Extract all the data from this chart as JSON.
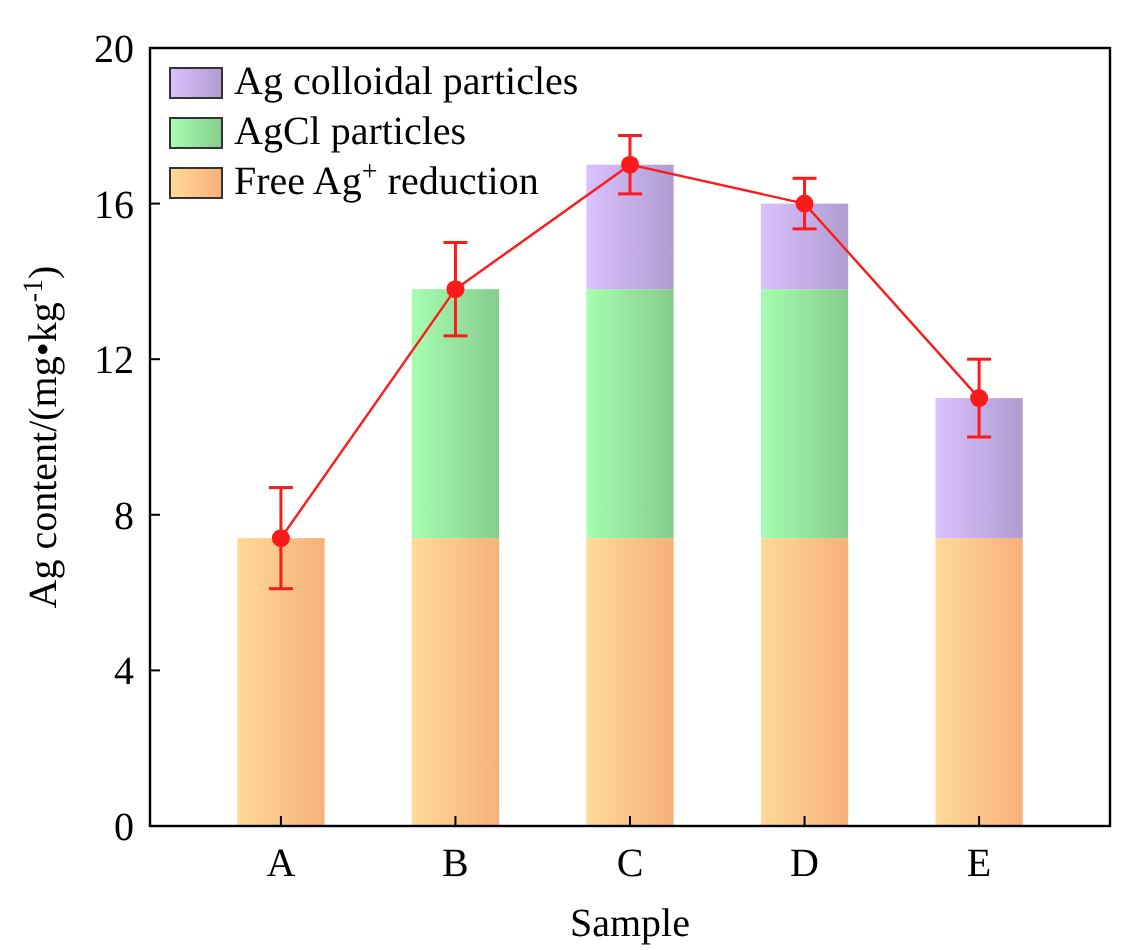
{
  "chart_data": {
    "type": "bar",
    "stacked": true,
    "xlabel": "Sample",
    "ylabel": "Ag content/(mg•kg$^{-1}$)",
    "categories": [
      "A",
      "B",
      "C",
      "D",
      "E"
    ],
    "series": [
      {
        "name": "Free Ag$^{+}$ reduction",
        "color": "#f7b07a",
        "values": [
          7.4,
          7.4,
          7.4,
          7.4,
          7.4
        ]
      },
      {
        "name": "AgCl particles",
        "color": "#86cc8e",
        "values": [
          0,
          6.4,
          6.4,
          6.4,
          0
        ]
      },
      {
        "name": "Ag colloidal particles",
        "color": "#b09ccf",
        "values": [
          0,
          0,
          3.2,
          2.2,
          3.6
        ]
      },
      {
        "type": "line",
        "color": "#ff1a1a",
        "marker": "circle",
        "values": [
          7.4,
          13.8,
          17.0,
          16.0,
          11.0
        ],
        "errors": [
          1.3,
          1.2,
          0.75,
          0.65,
          1.0
        ]
      }
    ],
    "ylim": [
      0,
      20
    ],
    "yticks": [
      0,
      4,
      8,
      12,
      16,
      20
    ],
    "legend": "top left"
  }
}
